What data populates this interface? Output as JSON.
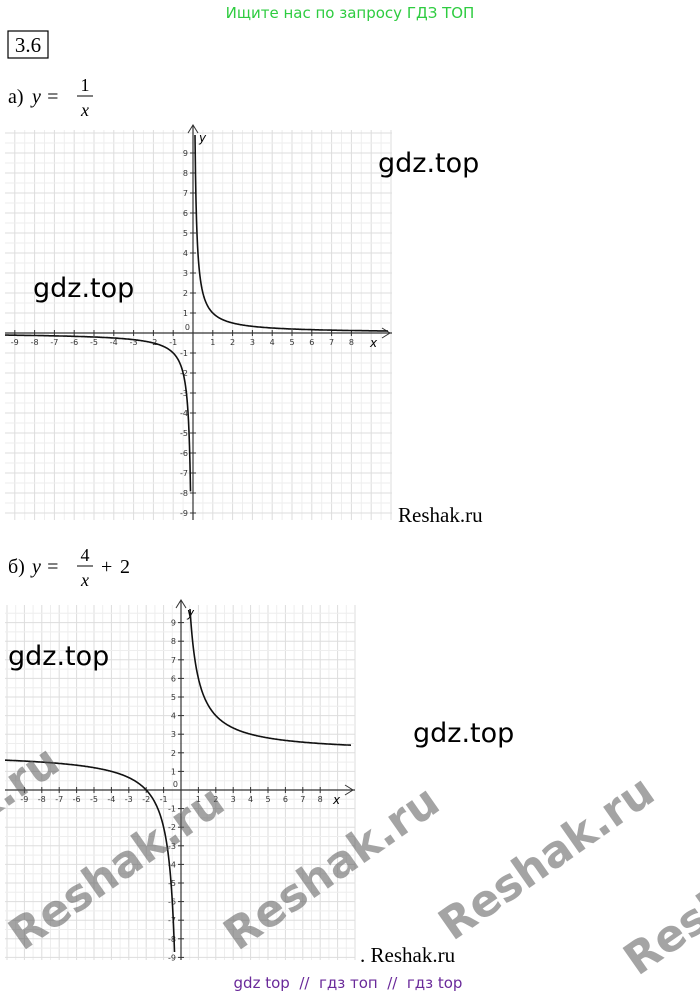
{
  "header": {
    "banner": "Ищите нас по запросу ГДЗ ТОП",
    "exercise": "3.6"
  },
  "graphs": [
    {
      "prefix": "а)",
      "lhs": "y =",
      "numerator": 1,
      "denominator": "x",
      "operator": null,
      "shift": null,
      "xticks": [
        -9,
        -8,
        -7,
        -6,
        -5,
        -4,
        -3,
        -2,
        -1,
        1,
        2,
        3,
        4,
        5,
        6,
        7,
        8
      ],
      "yticks": [
        9,
        8,
        7,
        6,
        5,
        4,
        3,
        2,
        1,
        -1,
        -2,
        -3,
        -4,
        -5,
        -6,
        -7,
        -8,
        -9
      ],
      "origin_label": "0",
      "x_label": "x",
      "y_label": "y"
    },
    {
      "prefix": "б)",
      "lhs": "y =",
      "numerator": 4,
      "denominator": "x",
      "operator": "+",
      "shift": 2,
      "xticks": [
        -9,
        -8,
        -7,
        -6,
        -5,
        -4,
        -3,
        -2,
        -1,
        1,
        2,
        3,
        4,
        5,
        6,
        7,
        8
      ],
      "yticks": [
        9,
        8,
        7,
        6,
        5,
        4,
        3,
        2,
        1,
        -1,
        -2,
        -3,
        -4,
        -5,
        -6,
        -7,
        -8,
        -9
      ],
      "origin_label": "0",
      "x_label": "x",
      "y_label": "y"
    }
  ],
  "watermarks": {
    "gdz": [
      "gdz.top",
      "gdz.top",
      "gdz.top",
      "gdz.top"
    ],
    "reshak": [
      "Reshak.ru",
      ". Reshak.ru"
    ],
    "diagonal": [
      "Reshak.ru",
      "Reshak.ru",
      "Reshak.ru",
      "Reshak.ru",
      "Reshak.ru"
    ]
  },
  "footer": "gdz top  //  гдз топ  //  гдз top"
}
